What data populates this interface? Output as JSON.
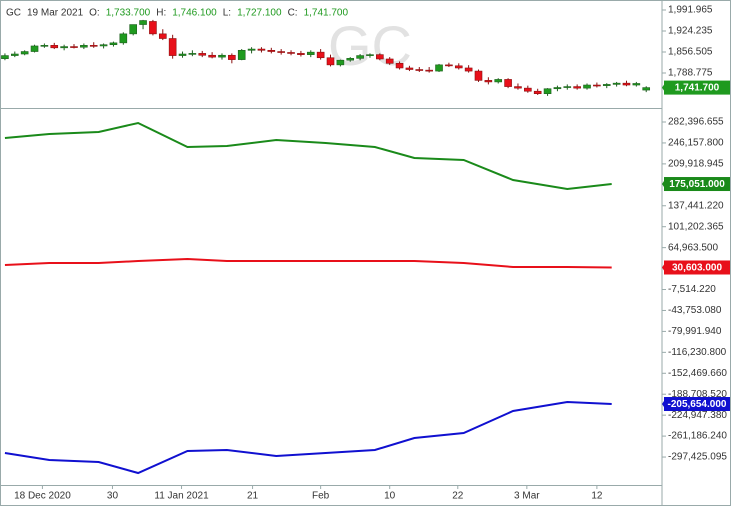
{
  "chart_data": [
    {
      "type": "candlestick",
      "symbol": "GC",
      "watermark": "GC",
      "header": {
        "date": "19 Mar 2021",
        "open_label": "O:",
        "open": "1,733.700",
        "high_label": "H:",
        "high": "1,746.100",
        "low_label": "L:",
        "low": "1,727.100",
        "close_label": "C:",
        "close": "1,741.700"
      },
      "up_color": "#1f9a1f",
      "down_color": "#e8101a",
      "x": [
        0,
        1,
        2,
        3,
        4,
        5,
        6,
        7,
        8,
        9,
        10,
        11,
        12,
        13,
        14,
        15,
        16,
        17,
        18,
        19,
        20,
        21,
        22,
        23,
        24,
        25,
        26,
        27,
        28,
        29,
        30,
        31,
        32,
        33,
        34,
        35,
        36,
        37,
        38,
        39,
        40,
        41,
        42,
        43,
        44,
        45,
        46,
        47,
        48,
        49,
        50,
        51,
        52,
        53,
        54,
        55,
        56,
        57,
        58,
        59,
        60,
        61,
        62,
        63,
        64,
        65
      ],
      "open": [
        1835,
        1845,
        1850,
        1858,
        1876,
        1878,
        1870,
        1874,
        1872,
        1878,
        1876,
        1880,
        1886,
        1915,
        1945,
        1955,
        1915,
        1900,
        1845,
        1850,
        1852,
        1846,
        1840,
        1846,
        1832,
        1862,
        1866,
        1862,
        1858,
        1855,
        1852,
        1848,
        1856,
        1838,
        1815,
        1830,
        1836,
        1845,
        1848,
        1834,
        1820,
        1805,
        1800,
        1798,
        1795,
        1815,
        1812,
        1805,
        1795,
        1765,
        1760,
        1768,
        1745,
        1740,
        1730,
        1722,
        1738,
        1742,
        1745,
        1740,
        1750,
        1748,
        1752,
        1756,
        1750,
        1733.7
      ],
      "high": [
        1852,
        1858,
        1862,
        1880,
        1884,
        1886,
        1880,
        1882,
        1884,
        1888,
        1884,
        1890,
        1920,
        1945,
        1960,
        1960,
        1930,
        1912,
        1858,
        1862,
        1860,
        1856,
        1852,
        1852,
        1866,
        1872,
        1872,
        1870,
        1866,
        1862,
        1860,
        1862,
        1866,
        1848,
        1832,
        1840,
        1850,
        1852,
        1852,
        1840,
        1826,
        1812,
        1808,
        1808,
        1818,
        1822,
        1820,
        1814,
        1800,
        1775,
        1772,
        1772,
        1755,
        1748,
        1738,
        1740,
        1748,
        1752,
        1752,
        1755,
        1758,
        1756,
        1760,
        1764,
        1760,
        1746.1
      ],
      "low": [
        1830,
        1840,
        1846,
        1855,
        1870,
        1866,
        1862,
        1868,
        1866,
        1870,
        1868,
        1874,
        1880,
        1910,
        1930,
        1910,
        1895,
        1835,
        1838,
        1843,
        1840,
        1836,
        1832,
        1820,
        1830,
        1852,
        1855,
        1852,
        1848,
        1846,
        1842,
        1840,
        1832,
        1810,
        1810,
        1825,
        1830,
        1838,
        1830,
        1815,
        1800,
        1795,
        1792,
        1790,
        1792,
        1808,
        1800,
        1790,
        1760,
        1752,
        1755,
        1740,
        1735,
        1725,
        1718,
        1715,
        1730,
        1735,
        1735,
        1735,
        1742,
        1740,
        1745,
        1746,
        1745,
        1727.1
      ],
      "close": [
        1845,
        1850,
        1858,
        1876,
        1878,
        1870,
        1874,
        1872,
        1878,
        1876,
        1880,
        1886,
        1915,
        1945,
        1958,
        1915,
        1900,
        1845,
        1850,
        1852,
        1846,
        1840,
        1846,
        1832,
        1862,
        1866,
        1862,
        1858,
        1855,
        1852,
        1848,
        1856,
        1838,
        1815,
        1830,
        1836,
        1845,
        1848,
        1834,
        1820,
        1805,
        1800,
        1798,
        1795,
        1815,
        1812,
        1805,
        1795,
        1765,
        1760,
        1768,
        1745,
        1740,
        1730,
        1722,
        1738,
        1742,
        1745,
        1740,
        1750,
        1748,
        1752,
        1756,
        1750,
        1755,
        1741.7
      ],
      "last": {
        "value": 1741.7,
        "label": "1,741.700"
      },
      "xlim": [
        -0.5,
        66.6
      ],
      "ylim": [
        1675.9,
        2024.2
      ],
      "yticks": [
        {
          "value": 1991.965,
          "label": "1,991.965"
        },
        {
          "value": 1924.235,
          "label": "1,924.235"
        },
        {
          "value": 1856.505,
          "label": "1,856.505"
        },
        {
          "value": 1788.775,
          "label": "1,788.775"
        }
      ]
    },
    {
      "type": "line",
      "x": [
        0,
        4.5,
        9.5,
        13.5,
        18.5,
        22.5,
        27.5,
        32.5,
        37.5,
        41.5,
        46.5,
        51.5,
        57,
        61.5
      ],
      "series": [
        {
          "color": "#1a8a1a",
          "values": [
            254707,
            261630,
            265090,
            280666,
            239131,
            240861,
            251246,
            246054,
            239131,
            220094,
            216633,
            182021,
            166445,
            175051
          ],
          "last_label": "175,051.000"
        },
        {
          "color": "#e8101a",
          "values": [
            34900,
            38400,
            38400,
            41800,
            45300,
            41800,
            41800,
            41800,
            41800,
            41800,
            38400,
            31500,
            31500,
            30603
          ],
          "last_label": "30,603.000"
        },
        {
          "color": "#1010d0",
          "values": [
            -290437,
            -302551,
            -306013,
            -325050,
            -286976,
            -285246,
            -295629,
            -290437,
            -285246,
            -264479,
            -255826,
            -217752,
            -202176,
            -205654
          ],
          "last_label": "-205,654.000"
        }
      ],
      "xlim": [
        -0.5,
        66.6
      ],
      "ylim": [
        -345812,
        303164
      ],
      "yticks": [
        {
          "value": 282396.655,
          "label": "282,396.655"
        },
        {
          "value": 246157.8,
          "label": "246,157.800"
        },
        {
          "value": 209918.945,
          "label": "209,918.945"
        },
        {
          "value": 137441.22,
          "label": "137,441.220"
        },
        {
          "value": 101202.365,
          "label": "101,202.365"
        },
        {
          "value": 64963.5,
          "label": "64,963.500"
        },
        {
          "value": -7514.22,
          "label": "-7,514.220"
        },
        {
          "value": -43753.08,
          "label": "-43,753.080"
        },
        {
          "value": -79991.94,
          "label": "-79,991.940"
        },
        {
          "value": -116230.8,
          "label": "-116,230.800"
        },
        {
          "value": -152469.66,
          "label": "-152,469.660"
        },
        {
          "value": -188708.52,
          "label": "-188,708.520"
        },
        {
          "value": -224947.38,
          "label": "-224,947.380"
        },
        {
          "value": -261186.24,
          "label": "-261,186.240"
        },
        {
          "value": -297425.095,
          "label": "-297,425.095"
        }
      ],
      "xticks": [
        {
          "value": 3.8,
          "label": "18 Dec 2020"
        },
        {
          "value": 10.9,
          "label": "30"
        },
        {
          "value": 17.9,
          "label": "11 Jan 2021"
        },
        {
          "value": 25.1,
          "label": "21"
        },
        {
          "value": 32,
          "label": "Feb"
        },
        {
          "value": 39,
          "label": "10"
        },
        {
          "value": 45.9,
          "label": "22"
        },
        {
          "value": 52.9,
          "label": "3 Mar"
        },
        {
          "value": 60,
          "label": "12"
        }
      ]
    }
  ]
}
